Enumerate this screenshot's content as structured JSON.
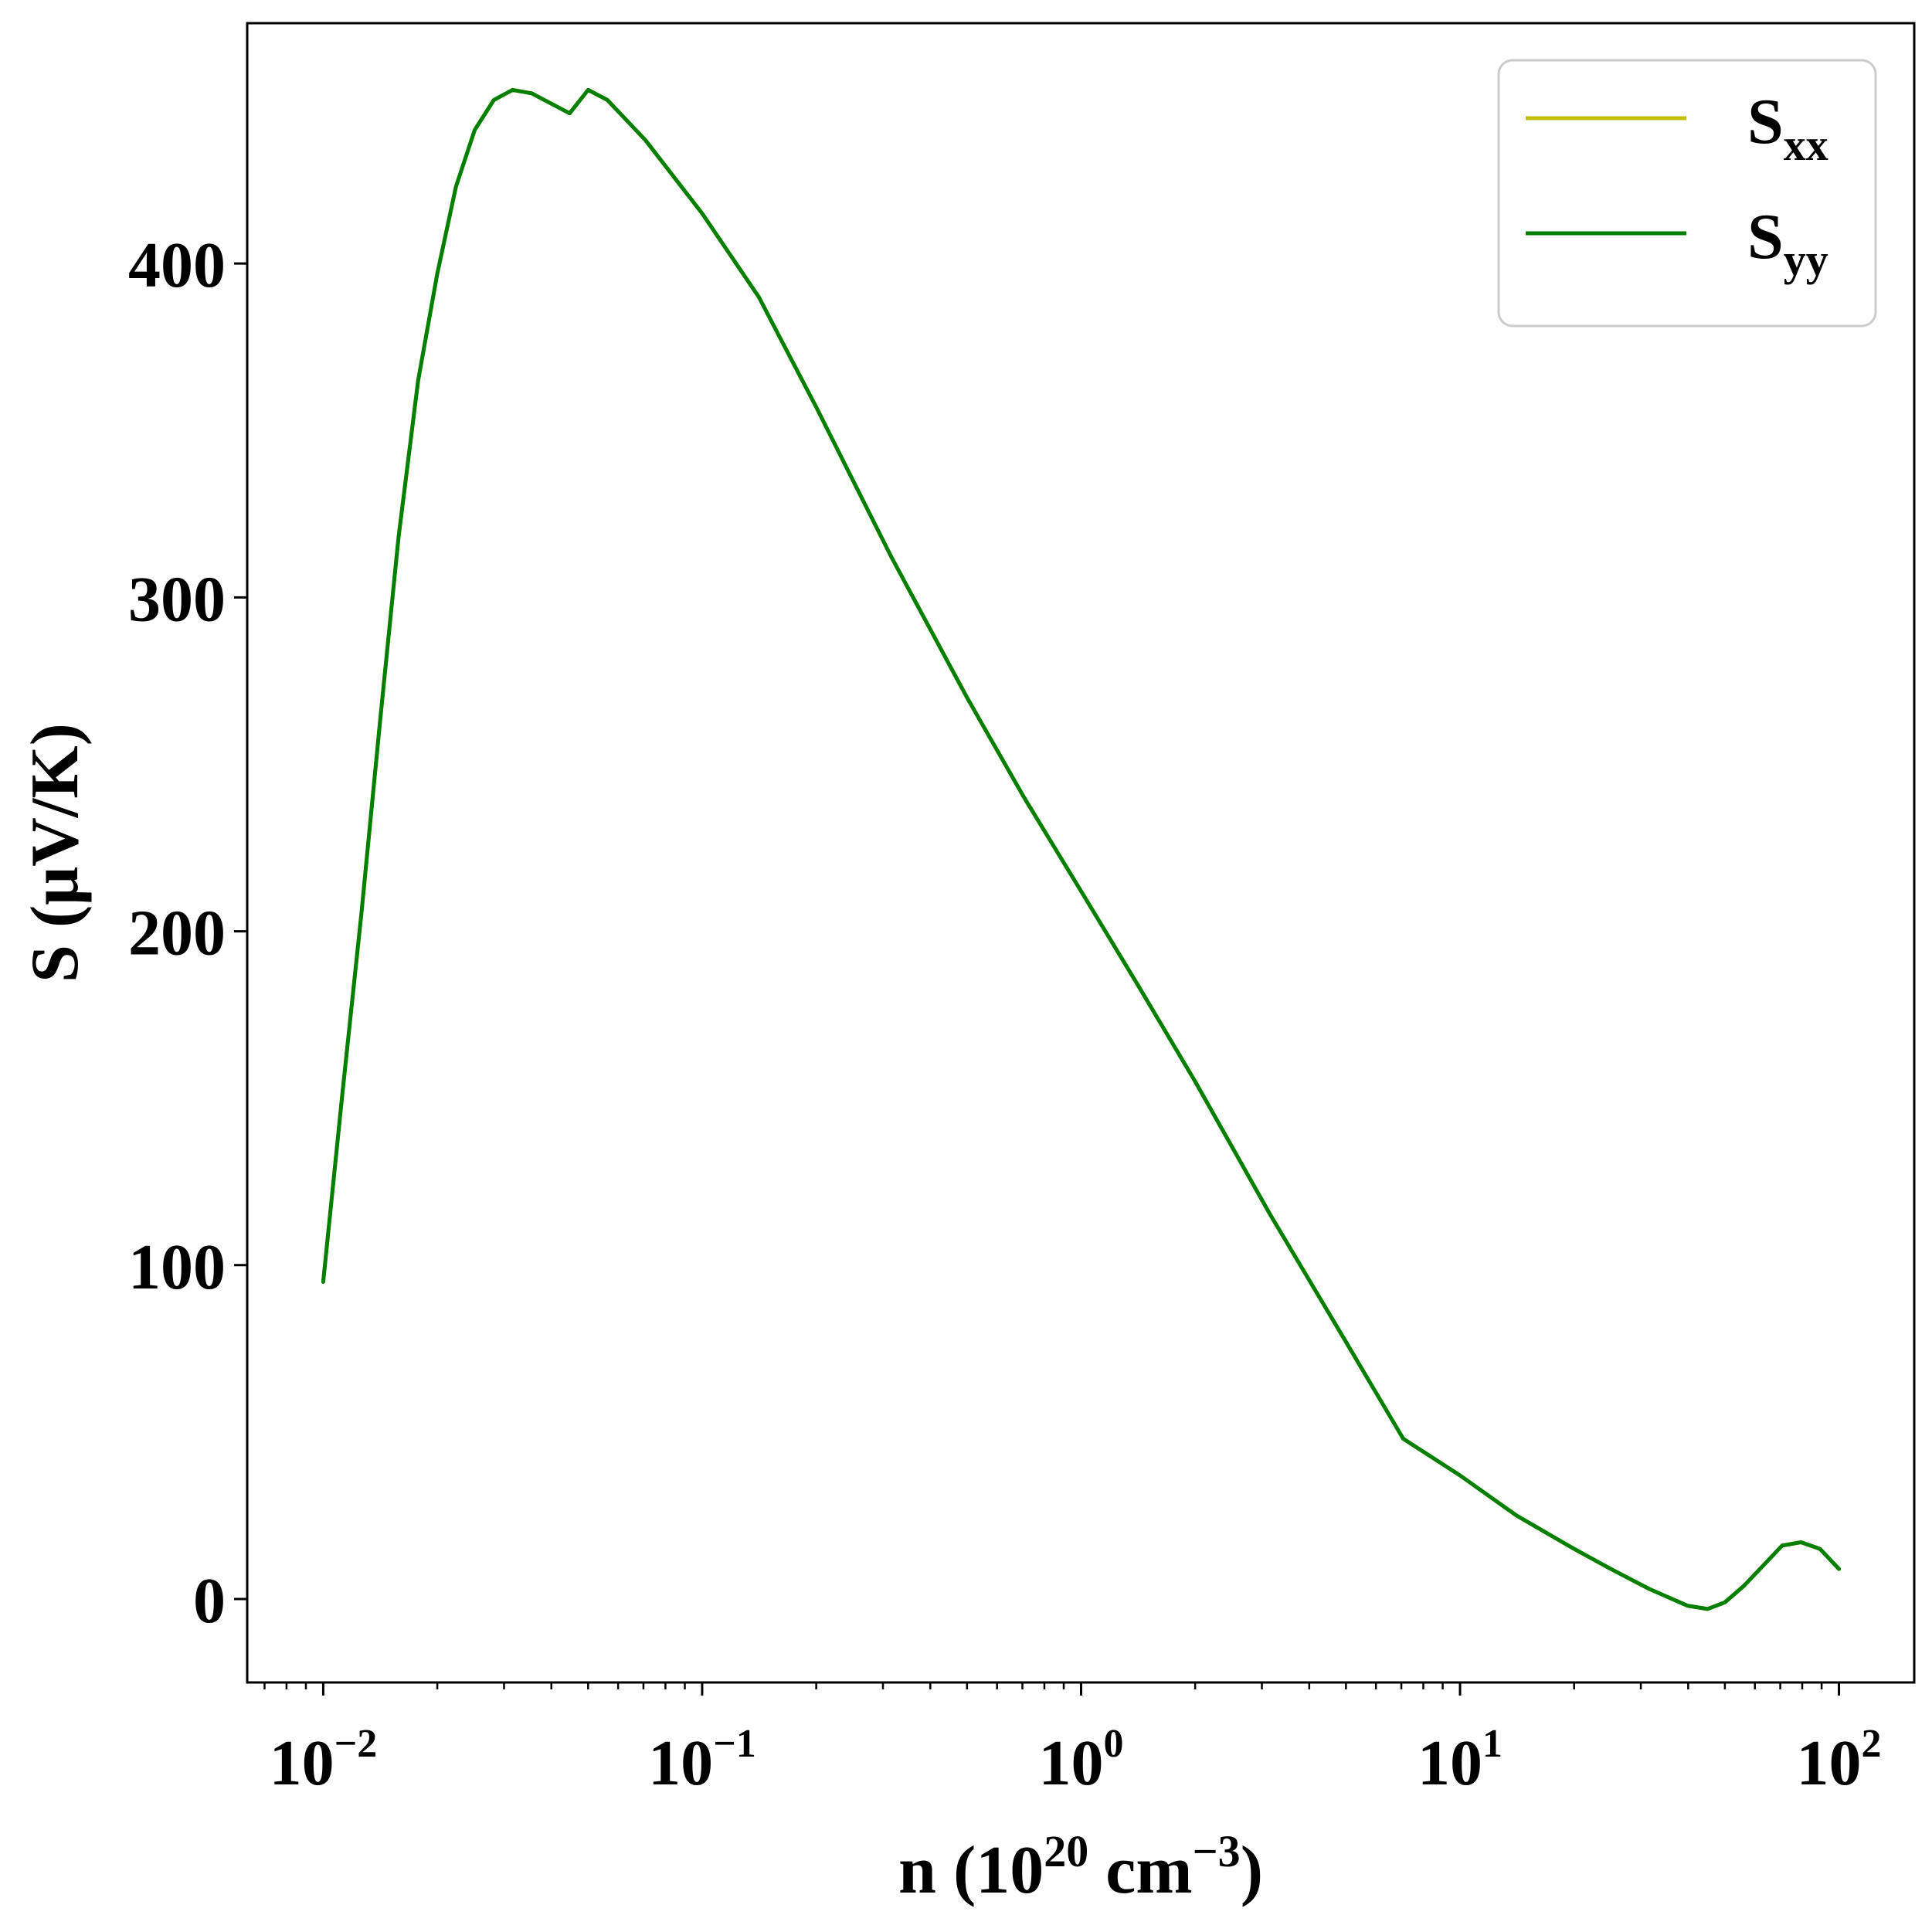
{
  "chart_data": {
    "type": "line",
    "xscale": "log",
    "xlim": [
      0.0063,
      158
    ],
    "ylim": [
      -25,
      472
    ],
    "xlabel": {
      "prefix": "n (10",
      "sup1": "20",
      "mid": " cm",
      "sup2": "−3",
      "suffix": ")"
    },
    "ylabel": "S (μV/K)",
    "x_ticks": [
      {
        "value": 0.01,
        "base": "10",
        "exp": "−2"
      },
      {
        "value": 0.1,
        "base": "10",
        "exp": "−1"
      },
      {
        "value": 1,
        "base": "10",
        "exp": "0"
      },
      {
        "value": 10,
        "base": "10",
        "exp": "1"
      },
      {
        "value": 100,
        "base": "10",
        "exp": "2"
      }
    ],
    "y_ticks": [
      {
        "value": 0,
        "label": "0"
      },
      {
        "value": 100,
        "label": "100"
      },
      {
        "value": 200,
        "label": "200"
      },
      {
        "value": 300,
        "label": "300"
      },
      {
        "value": 400,
        "label": "400"
      }
    ],
    "grid": false,
    "legend_position": "top-right",
    "series": [
      {
        "name": "S",
        "name_sub": "xx",
        "color": "#bfbf00",
        "x": [
          0.01,
          0.0112,
          0.0126,
          0.0141,
          0.0158,
          0.0178,
          0.02,
          0.0224,
          0.0251,
          0.0282,
          0.0316,
          0.0355,
          0.0398,
          0.0447,
          0.05,
          0.0562,
          0.0708,
          0.1,
          0.141,
          0.2,
          0.316,
          0.5,
          0.708,
          1,
          1.41,
          2,
          3.16,
          5,
          7.08,
          10,
          14.1,
          20,
          25,
          31.6,
          39.8,
          45,
          50,
          56.2,
          63.1,
          70.8,
          79.4,
          89.1,
          100
        ],
        "y": [
          95,
          150,
          205,
          262,
          318,
          365,
          397,
          423,
          440,
          449,
          452,
          451,
          448,
          445,
          452,
          449,
          437,
          415,
          390,
          357,
          312,
          270,
          240,
          212,
          184,
          155,
          115,
          77,
          48,
          37,
          25,
          15,
          9,
          3,
          -2,
          -3,
          -1,
          4,
          10,
          16,
          17,
          15,
          9
        ]
      },
      {
        "name": "S",
        "name_sub": "yy",
        "color": "#007f00",
        "x": [
          0.01,
          0.0112,
          0.0126,
          0.0141,
          0.0158,
          0.0178,
          0.02,
          0.0224,
          0.0251,
          0.0282,
          0.0316,
          0.0355,
          0.0398,
          0.0447,
          0.05,
          0.0562,
          0.0708,
          0.1,
          0.141,
          0.2,
          0.316,
          0.5,
          0.708,
          1,
          1.41,
          2,
          3.16,
          5,
          7.08,
          10,
          14.1,
          20,
          25,
          31.6,
          39.8,
          45,
          50,
          56.2,
          63.1,
          70.8,
          79.4,
          89.1,
          100
        ],
        "y": [
          95,
          150,
          205,
          262,
          318,
          365,
          397,
          423,
          440,
          449,
          452,
          451,
          448,
          445,
          452,
          449,
          437,
          415,
          390,
          357,
          312,
          270,
          240,
          212,
          184,
          155,
          115,
          77,
          48,
          37,
          25,
          15,
          9,
          3,
          -2,
          -3,
          -1,
          4,
          10,
          16,
          17,
          15,
          9
        ]
      }
    ]
  }
}
